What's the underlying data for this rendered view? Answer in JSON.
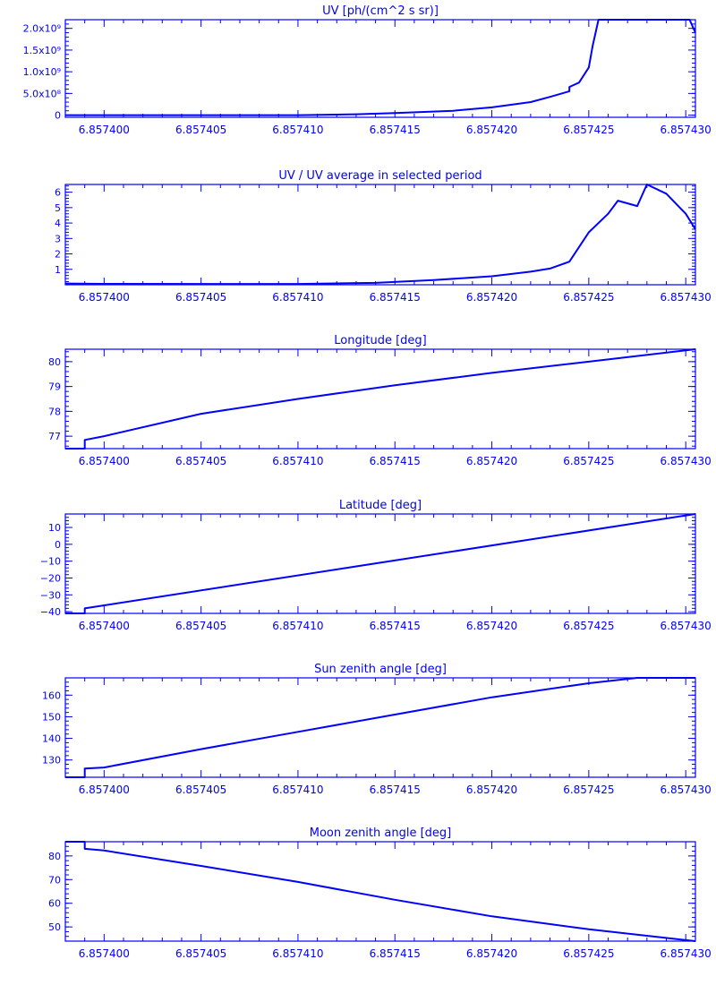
{
  "colors": {
    "line": "#0000ff",
    "background": "#ffffff"
  },
  "x_tick_labels": [
    "6.857400",
    "6.857405",
    "6.857410",
    "6.857415",
    "6.857420",
    "6.857425",
    "6.857430"
  ],
  "chart_data": [
    {
      "type": "line",
      "title": "UV [ph/(cm^2 s sr)]",
      "xlim": [
        6.857398,
        6.8574305
      ],
      "ylim": [
        -50000000.0,
        2200000000.0
      ],
      "yticks": [
        0,
        500000000.0,
        1000000000.0,
        1500000000.0,
        2000000000.0
      ],
      "ytick_labels": [
        "0",
        "5.0x10⁸",
        "1.0x10⁹",
        "1.5x10⁹",
        "2.0x10⁹"
      ],
      "x": [
        6.857398,
        6.8574,
        6.85741,
        6.857413,
        6.857415,
        6.857418,
        6.85742,
        6.857422,
        6.857423,
        6.857424,
        6.857424,
        6.8574245,
        6.857425,
        6.8574252,
        6.8574255,
        6.8574302,
        6.8574305
      ],
      "y": [
        0,
        0,
        0,
        20000000.0,
        50000000.0,
        100000000.0,
        180000000.0,
        300000000.0,
        420000000.0,
        550000000.0,
        650000000.0,
        750000000.0,
        1100000000.0,
        1600000000.0,
        2200000000.0,
        2200000000.0,
        1900000000.0
      ]
    },
    {
      "type": "line",
      "title": "UV / UV average in selected period",
      "xlim": [
        6.857398,
        6.8574305
      ],
      "ylim": [
        0,
        6.5
      ],
      "yticks": [
        1,
        2,
        3,
        4,
        5,
        6
      ],
      "ytick_labels": [
        "1",
        "2",
        "3",
        "4",
        "5",
        "6"
      ],
      "x": [
        6.857398,
        6.8574,
        6.85741,
        6.857414,
        6.857417,
        6.85742,
        6.857422,
        6.857423,
        6.857424,
        6.857425,
        6.857426,
        6.8574265,
        6.8574275,
        6.857428,
        6.857429,
        6.85743,
        6.8574305
      ],
      "y": [
        0.08,
        0.06,
        0.05,
        0.12,
        0.3,
        0.55,
        0.85,
        1.05,
        1.5,
        3.4,
        4.6,
        5.45,
        5.1,
        6.5,
        5.9,
        4.6,
        3.6
      ]
    },
    {
      "type": "line",
      "title": "Longitude [deg]",
      "xlim": [
        6.857398,
        6.8574305
      ],
      "ylim": [
        76.5,
        80.5
      ],
      "yticks": [
        77,
        78,
        79,
        80
      ],
      "ytick_labels": [
        "77",
        "78",
        "79",
        "80"
      ],
      "x": [
        6.857398,
        6.857399,
        6.857399,
        6.8574,
        6.857405,
        6.85741,
        6.857415,
        6.85742,
        6.857425,
        6.8574305
      ],
      "y": [
        76.5,
        76.5,
        76.85,
        77.0,
        77.9,
        78.5,
        79.05,
        79.55,
        80.0,
        80.5
      ]
    },
    {
      "type": "line",
      "title": "Latitude [deg]",
      "xlim": [
        6.857398,
        6.8574305
      ],
      "ylim": [
        -41,
        18
      ],
      "yticks": [
        -40,
        -30,
        -20,
        -10,
        0,
        10
      ],
      "ytick_labels": [
        "−40",
        "−30",
        "−20",
        "−10",
        "0",
        "10"
      ],
      "x": [
        6.857398,
        6.857399,
        6.857399,
        6.8574305
      ],
      "y": [
        -41,
        -41,
        -38,
        18
      ]
    },
    {
      "type": "line",
      "title": "Sun zenith angle [deg]",
      "xlim": [
        6.857398,
        6.8574305
      ],
      "ylim": [
        122,
        168
      ],
      "yticks": [
        130,
        140,
        150,
        160
      ],
      "ytick_labels": [
        "130",
        "140",
        "150",
        "160"
      ],
      "x": [
        6.857398,
        6.857399,
        6.857399,
        6.8574,
        6.857405,
        6.85741,
        6.857415,
        6.85742,
        6.857425,
        6.8574275,
        6.8574305
      ],
      "y": [
        122,
        122,
        126,
        126.5,
        135,
        143,
        151,
        159,
        165.5,
        168,
        168
      ]
    },
    {
      "type": "line",
      "title": "Moon zenith angle [deg]",
      "xlim": [
        6.857398,
        6.8574305
      ],
      "ylim": [
        44,
        86
      ],
      "yticks": [
        50,
        60,
        70,
        80
      ],
      "ytick_labels": [
        "50",
        "60",
        "70",
        "80"
      ],
      "x": [
        6.857398,
        6.857399,
        6.857399,
        6.8574,
        6.857405,
        6.85741,
        6.857415,
        6.85742,
        6.857425,
        6.8574305
      ],
      "y": [
        86,
        86,
        83,
        82.3,
        75.8,
        69,
        61.5,
        54.5,
        49,
        44
      ]
    }
  ]
}
